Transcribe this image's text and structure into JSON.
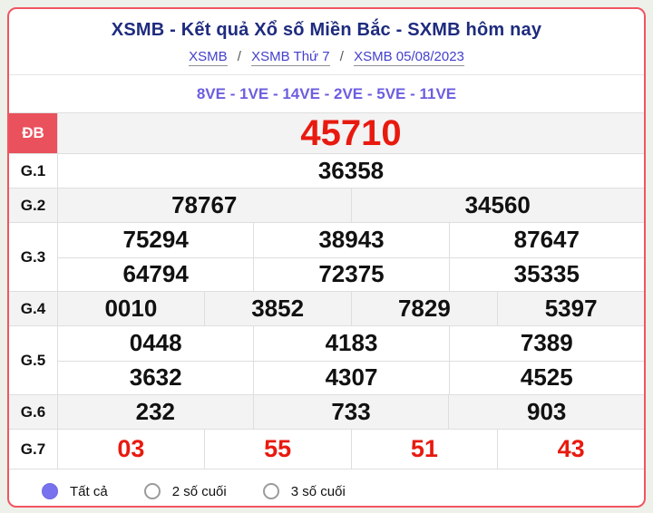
{
  "header": {
    "title": "XSMB - Kết quả Xổ số Miền Bắc - SXMB hôm nay",
    "separator": "/",
    "breadcrumb": [
      {
        "label": "XSMB"
      },
      {
        "label": "XSMB Thứ 7"
      },
      {
        "label": "XSMB 05/08/2023"
      }
    ]
  },
  "ve_line": "8VE - 1VE - 14VE - 2VE - 5VE - 11VE",
  "table": {
    "rows": {
      "db": {
        "label": "ĐB",
        "values": [
          "45710"
        ]
      },
      "g1": {
        "label": "G.1",
        "values": [
          "36358"
        ]
      },
      "g2": {
        "label": "G.2",
        "values": [
          "78767",
          "34560"
        ]
      },
      "g3": {
        "label": "G.3",
        "row1": [
          "75294",
          "38943",
          "87647"
        ],
        "row2": [
          "64794",
          "72375",
          "35335"
        ]
      },
      "g4": {
        "label": "G.4",
        "values": [
          "0010",
          "3852",
          "7829",
          "5397"
        ]
      },
      "g5": {
        "label": "G.5",
        "row1": [
          "0448",
          "4183",
          "7389"
        ],
        "row2": [
          "3632",
          "4307",
          "4525"
        ]
      },
      "g6": {
        "label": "G.6",
        "values": [
          "232",
          "733",
          "903"
        ]
      },
      "g7": {
        "label": "G.7",
        "values": [
          "03",
          "55",
          "51",
          "43"
        ]
      }
    }
  },
  "filters": {
    "options": [
      {
        "label": "Tất cả",
        "selected": true
      },
      {
        "label": "2 số cuối",
        "selected": false
      },
      {
        "label": "3 số cuối",
        "selected": false
      }
    ]
  },
  "colors": {
    "card_border_red": "#f15560",
    "special_label_bg": "#e9515c",
    "number_red": "#e81a0f",
    "title_navy": "#1e2b7e",
    "link_blue": "#4340cc",
    "ve_purple": "#6c5ee0",
    "radio_purple": "#7872ee",
    "row_gray": "#f3f3f4"
  }
}
